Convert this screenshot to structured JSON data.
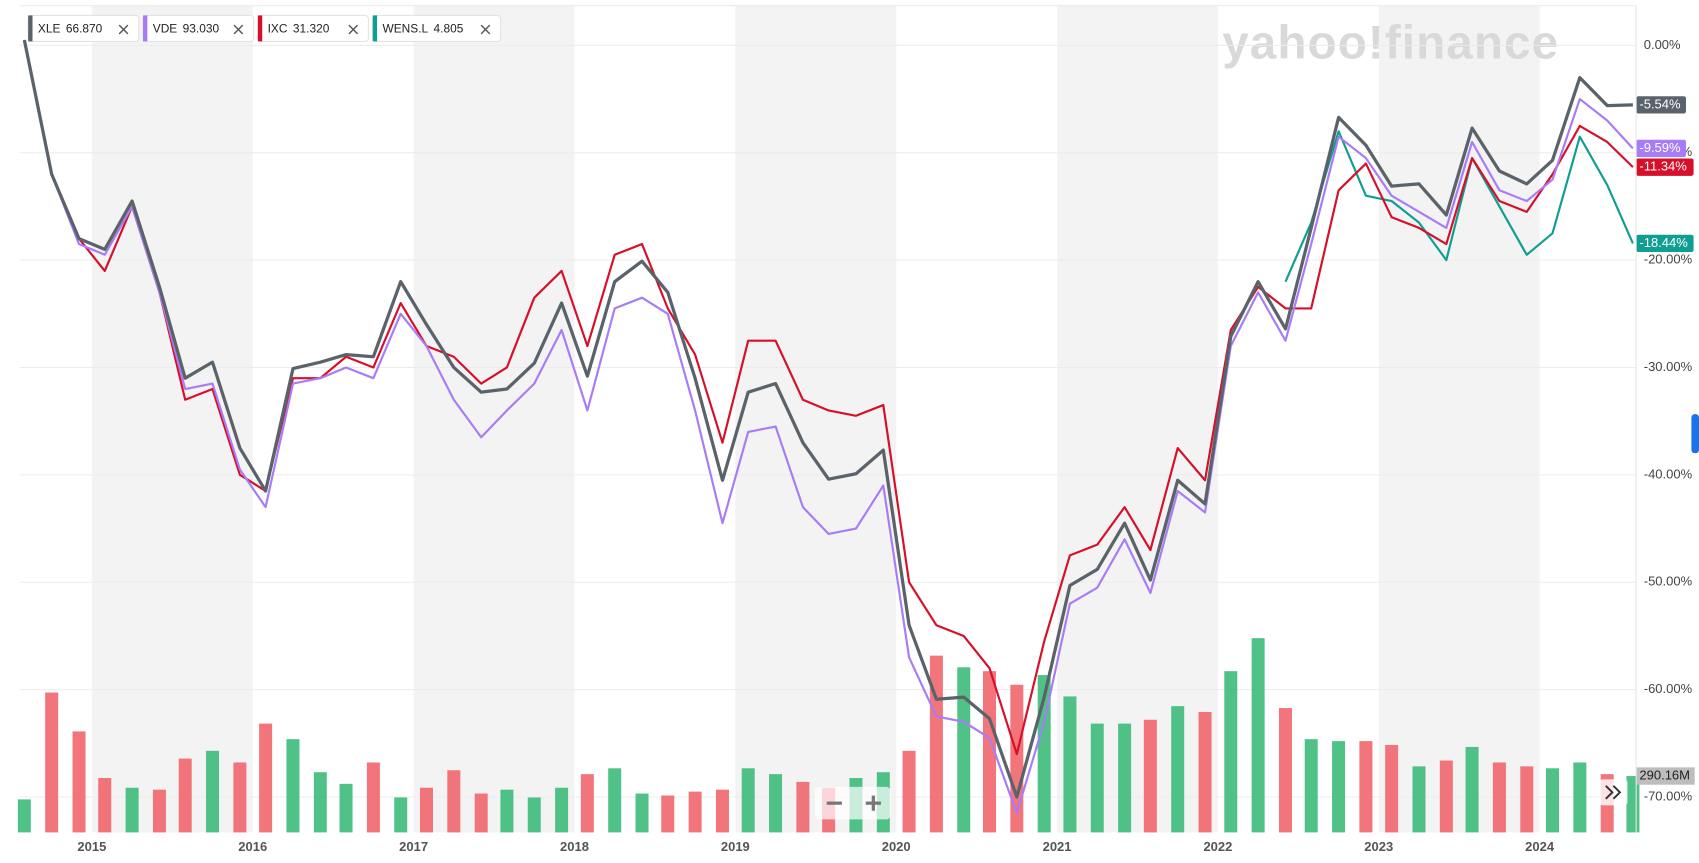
{
  "chart_data": {
    "type": "line",
    "watermark": "yahoo!finance",
    "x": [
      2014.58,
      2014.75,
      2014.92,
      2015.08,
      2015.25,
      2015.42,
      2015.58,
      2015.75,
      2015.92,
      2016.08,
      2016.25,
      2016.42,
      2016.58,
      2016.75,
      2016.92,
      2017.08,
      2017.25,
      2017.42,
      2017.58,
      2017.75,
      2017.92,
      2018.08,
      2018.25,
      2018.42,
      2018.58,
      2018.75,
      2018.92,
      2019.08,
      2019.25,
      2019.42,
      2019.58,
      2019.75,
      2019.92,
      2020.08,
      2020.25,
      2020.42,
      2020.58,
      2020.75,
      2020.92,
      2021.08,
      2021.25,
      2021.42,
      2021.58,
      2021.75,
      2021.92,
      2022.08,
      2022.25,
      2022.42,
      2022.58,
      2022.75,
      2022.92,
      2023.08,
      2023.25,
      2023.42,
      2023.58,
      2023.75,
      2023.92,
      2024.08,
      2024.25,
      2024.42,
      2024.58
    ],
    "xlim": [
      2014.55,
      2024.6
    ],
    "xticks": [
      2015,
      2016,
      2017,
      2018,
      2019,
      2020,
      2021,
      2022,
      2023,
      2024
    ],
    "ylim": [
      -73.3,
      3.7
    ],
    "yticks": [
      {
        "value": 0,
        "label": "0.00%"
      },
      {
        "value": -10,
        "label": "-10.00%"
      },
      {
        "value": -20,
        "label": "-20.00%"
      },
      {
        "value": -30,
        "label": "-30.00%"
      },
      {
        "value": -40,
        "label": "-40.00%"
      },
      {
        "value": -50,
        "label": "-50.00%"
      },
      {
        "value": -60,
        "label": "-60.00%"
      },
      {
        "value": -70,
        "label": "-70.00%"
      }
    ],
    "grid": true,
    "series": [
      {
        "name": "XLE",
        "quote": "66.870",
        "color": "#5b636a",
        "width": 3,
        "end_label": "-5.54%",
        "values": [
          0.5,
          -12,
          -18,
          -19,
          -14.5,
          -22.5,
          -31,
          -29.5,
          -37.5,
          -41.5,
          -30.1,
          -29.5,
          -28.8,
          -29,
          -22,
          -26,
          -30,
          -32.3,
          -32,
          -29.6,
          -24,
          -30.8,
          -22,
          -20.1,
          -23,
          -31,
          -40.5,
          -32.3,
          -31.5,
          -37,
          -40.4,
          -39.9,
          -37.7,
          -54,
          -60.9,
          -60.7,
          -62.7,
          -70,
          -60.7,
          -50.3,
          -48.8,
          -44.5,
          -49.8,
          -40.5,
          -42.7,
          -27.1,
          -22,
          -26.4,
          -17,
          -6.7,
          -9.3,
          -13.1,
          -12.9,
          -15.8,
          -7.7,
          -11.7,
          -12.9,
          -10.7,
          -3,
          -5.6,
          -5.54
        ]
      },
      {
        "name": "VDE",
        "quote": "93.030",
        "color": "#a77cf6",
        "width": 2,
        "end_label": "-9.59%",
        "values": [
          0.5,
          -12,
          -18.5,
          -19.5,
          -15,
          -23,
          -32,
          -31.5,
          -39.5,
          -43,
          -31.5,
          -31,
          -30,
          -31,
          -25,
          -28,
          -33,
          -36.5,
          -34,
          -31.5,
          -26.5,
          -34,
          -24.5,
          -23.5,
          -25,
          -34,
          -44.5,
          -36,
          -35.5,
          -43,
          -45.5,
          -45,
          -41,
          -57,
          -62.5,
          -63,
          -64.5,
          -71.5,
          -63,
          -52,
          -50.5,
          -46,
          -51,
          -41.5,
          -43.5,
          -28,
          -23,
          -27.5,
          -18.5,
          -8.5,
          -10.5,
          -14,
          -15.5,
          -17,
          -9,
          -13.5,
          -14.5,
          -12.5,
          -5,
          -7,
          -9.59
        ]
      },
      {
        "name": "IXC",
        "quote": "31.320",
        "color": "#d6102a",
        "width": 2,
        "end_label": "-11.34%",
        "values": [
          0.5,
          -12,
          -18,
          -21,
          -15,
          -23,
          -33,
          -32,
          -40,
          -41.5,
          -31,
          -31,
          -29,
          -30,
          -24,
          -28,
          -29,
          -31.5,
          -30,
          -23.5,
          -21,
          -28,
          -19.5,
          -18.5,
          -24.5,
          -28.8,
          -37,
          -27.5,
          -27.5,
          -33,
          -34,
          -34.5,
          -33.5,
          -50,
          -54,
          -55,
          -58,
          -66,
          -55.5,
          -47.5,
          -46.5,
          -43,
          -47,
          -37.5,
          -40.5,
          -26.5,
          -22.5,
          -24.5,
          -24.5,
          -13.5,
          -11,
          -16,
          -17,
          -18.5,
          -10.5,
          -14.5,
          -15.5,
          -12,
          -7.5,
          -9,
          -11.34
        ]
      },
      {
        "name": "WENS.L",
        "quote": "4.805",
        "color": "#0f9e92",
        "width": 2,
        "end_label": "-18.44%",
        "values": [
          null,
          null,
          null,
          null,
          null,
          null,
          null,
          null,
          null,
          null,
          null,
          null,
          null,
          null,
          null,
          null,
          null,
          null,
          null,
          null,
          null,
          null,
          null,
          null,
          null,
          null,
          null,
          null,
          null,
          null,
          null,
          null,
          null,
          null,
          null,
          null,
          null,
          null,
          null,
          null,
          null,
          null,
          null,
          null,
          null,
          null,
          null,
          -22,
          -16.5,
          -8,
          -14,
          -14.5,
          -16.5,
          -20,
          -10.5,
          -15,
          -19.5,
          -17.5,
          -8.5,
          -13,
          -18.44
        ]
      }
    ],
    "volume": {
      "up_color": "#3dbb7a",
      "down_color": "#f0666b",
      "ylim": [
        0,
        1400
      ],
      "last_label": "290.16M",
      "values": [
        170,
        720,
        520,
        280,
        230,
        220,
        380,
        420,
        360,
        560,
        480,
        310,
        250,
        360,
        180,
        230,
        320,
        200,
        220,
        180,
        230,
        300,
        330,
        200,
        190,
        210,
        220,
        330,
        300,
        260,
        230,
        280,
        310,
        420,
        910,
        850,
        830,
        760,
        810,
        700,
        560,
        560,
        580,
        650,
        620,
        830,
        1000,
        640,
        480,
        470,
        470,
        450,
        340,
        370,
        440,
        360,
        340,
        330,
        360,
        300,
        290.16
      ]
    }
  }
}
